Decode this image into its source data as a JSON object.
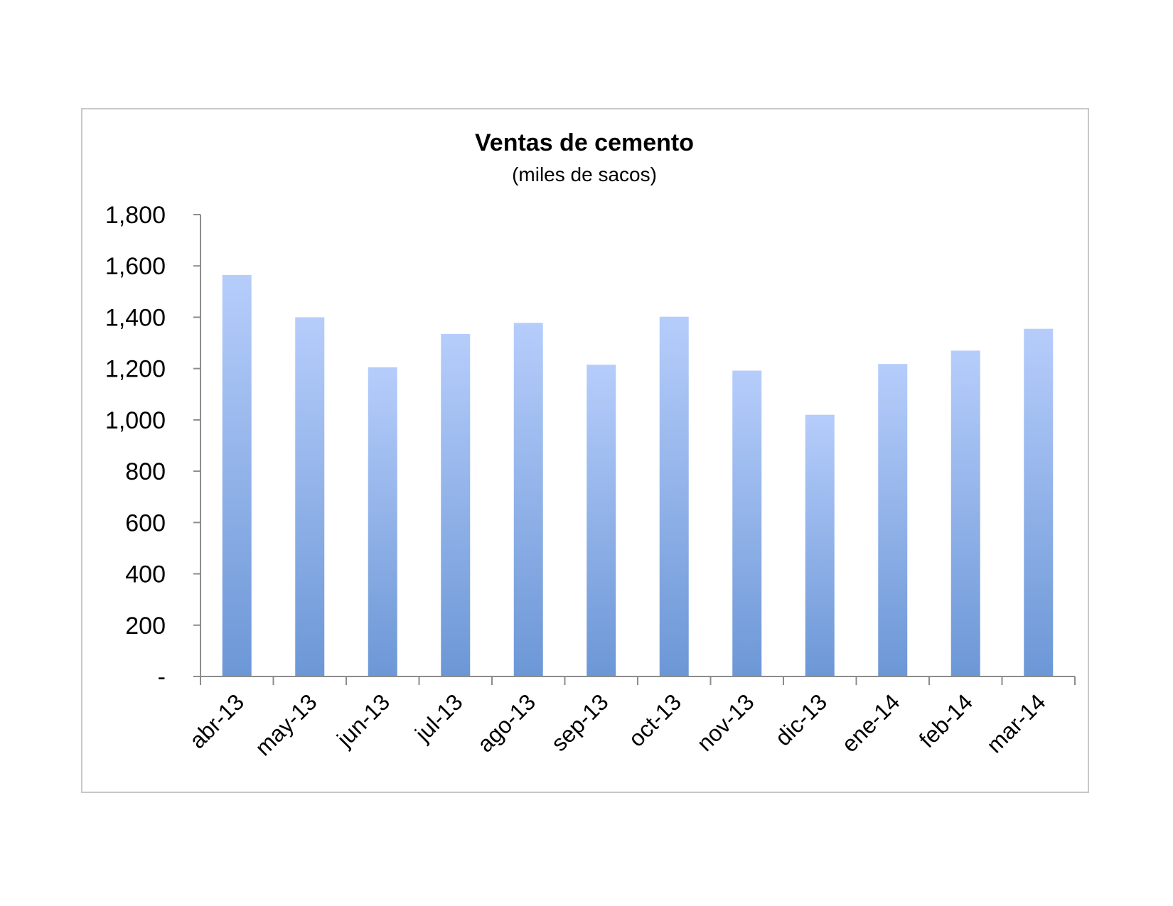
{
  "chart_data": {
    "type": "bar",
    "title": "Ventas de cemento",
    "subtitle": "(miles de sacos)",
    "xlabel": "",
    "ylabel": "",
    "categories": [
      "abr-13",
      "may-13",
      "jun-13",
      "jul-13",
      "ago-13",
      "sep-13",
      "oct-13",
      "nov-13",
      "dic-13",
      "ene-14",
      "feb-14",
      "mar-14"
    ],
    "values": [
      1565,
      1400,
      1205,
      1335,
      1378,
      1215,
      1402,
      1192,
      1020,
      1218,
      1270,
      1355
    ],
    "ylim": [
      0,
      1800
    ],
    "yticks": [
      0,
      200,
      400,
      600,
      800,
      1000,
      1200,
      1400,
      1600,
      1800
    ],
    "ytick_labels": [
      "-",
      "200",
      "400",
      "600",
      "800",
      "1,000",
      "1,200",
      "1,400",
      "1,600",
      "1,800"
    ],
    "grid": false,
    "legend": "none",
    "colors": {
      "bar_top": "#b6cdfb",
      "bar_bottom": "#6c97d6",
      "axis": "#8c8c8c",
      "frame": "#c8c8c8"
    }
  }
}
